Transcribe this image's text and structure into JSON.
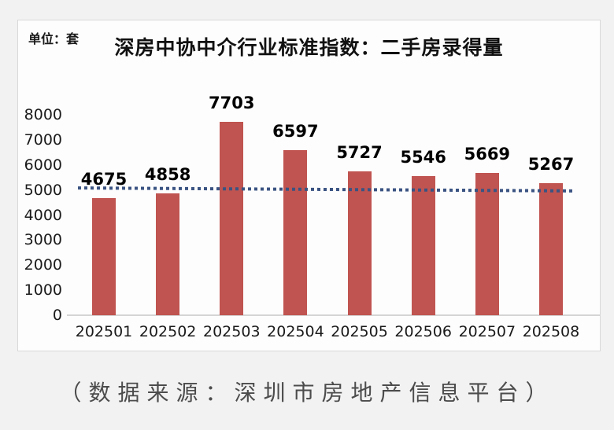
{
  "page": {
    "caption": "（数据来源：深圳市房地产信息平台）"
  },
  "colors": {
    "bar": "#c05450",
    "trendline": "#3a5382",
    "axis_line": "#d5d5d5",
    "panel_background": "#fdfdfd",
    "page_background": "#f2f2f2"
  },
  "chart_data": {
    "type": "bar",
    "title": "深房中协中介行业标准指数：二手房录得量",
    "unit_label": "单位：套",
    "categories": [
      "202501",
      "202502",
      "202503",
      "202504",
      "202505",
      "202506",
      "202507",
      "202508"
    ],
    "values": [
      4675,
      4858,
      7703,
      6597,
      5727,
      5546,
      5669,
      5267
    ],
    "xlabel": "",
    "ylabel": "",
    "ylim": [
      0,
      8000
    ],
    "yticks": [
      0,
      1000,
      2000,
      3000,
      4000,
      5000,
      6000,
      7000,
      8000
    ],
    "grid": false,
    "legend": false,
    "bar_color": "#c05450",
    "trendline": {
      "type": "linear",
      "style": "dotted",
      "color": "#3a5382",
      "start_value": 5080,
      "end_value": 4960
    }
  }
}
